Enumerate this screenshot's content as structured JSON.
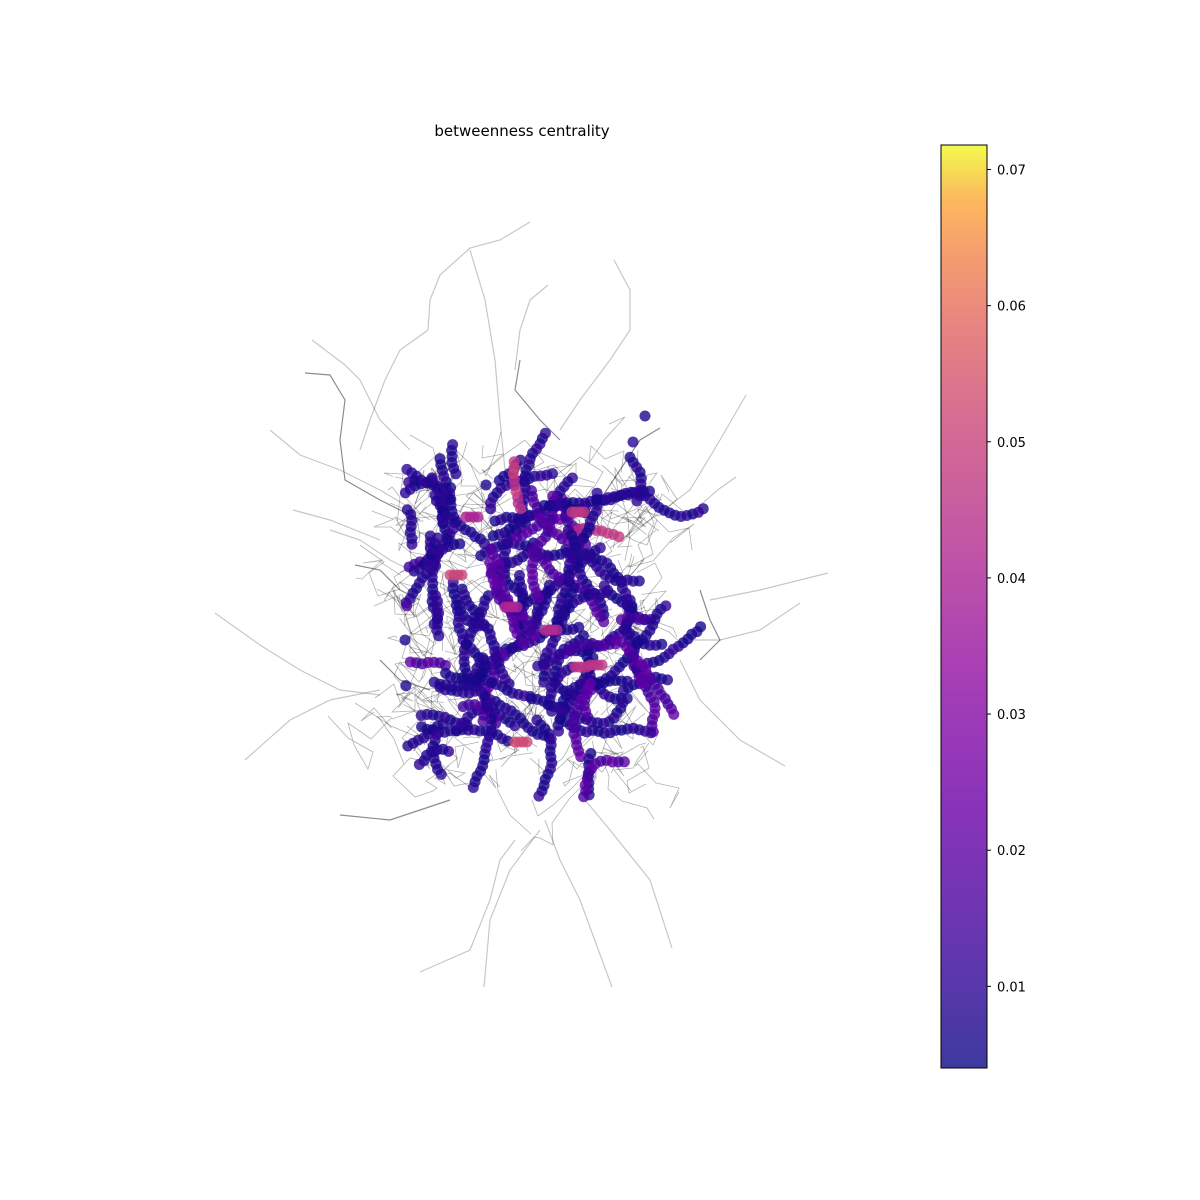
{
  "chart_data": {
    "type": "scatter",
    "title": "betweenness centrality",
    "xlabel": "",
    "ylabel": "",
    "axes_visible": false,
    "grid": false,
    "legend": "none",
    "colormap": {
      "name": "plasma",
      "alpha": 0.8,
      "range": [
        0.004,
        0.0718
      ],
      "ticks": [
        0.01,
        0.02,
        0.03,
        0.04,
        0.05,
        0.06,
        0.07
      ],
      "tick_labels": [
        "0.01",
        "0.02",
        "0.03",
        "0.04",
        "0.05",
        "0.06",
        "0.07"
      ],
      "placement": "right"
    },
    "edge_color": "#000000",
    "node_value_note": "Network nodes coloured by betweenness centrality; most nodes ~0.005-0.02, a few bridge nodes up to ~0.05-0.06"
  }
}
